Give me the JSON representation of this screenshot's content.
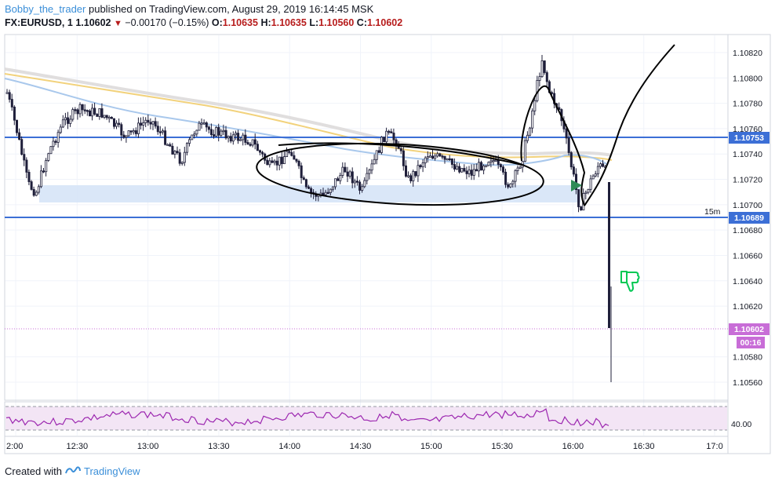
{
  "header": {
    "author": "Bobby_the_trader",
    "published": "published on TradingView.com, August 29, 2019 16:14:45 MSK",
    "symbol": "FX:EURUSD, 1",
    "last": "1.10602",
    "change": "−0.00170 (−0.15%)",
    "o_label": "O:",
    "o_value": "1.10635",
    "h_label": "H:",
    "h_value": "1.10635",
    "l_label": "L:",
    "l_value": "1.10560",
    "c_label": "C:",
    "c_value": "1.10602"
  },
  "price_axis": {
    "ticks": [
      "1.10820",
      "1.10800",
      "1.10780",
      "1.10760",
      "1.10740",
      "1.10720",
      "1.10700",
      "1.10680",
      "1.10660",
      "1.10640",
      "1.10620",
      "1.10580",
      "1.10560"
    ],
    "badges": {
      "upper_line": "1.10753",
      "lower_line": "1.10689",
      "current_price": "1.10602",
      "countdown": "00:16"
    },
    "line_label": "15m"
  },
  "rsi_axis": {
    "tick": "40.00"
  },
  "time_axis": {
    "ticks": [
      "2:00",
      "12:30",
      "13:00",
      "13:30",
      "14:00",
      "14:30",
      "15:00",
      "15:30",
      "16:00",
      "16:30",
      "17:0"
    ]
  },
  "footer": {
    "created_with": "Created with",
    "brand": "TradingView"
  },
  "colors": {
    "horizontal_line": "#2962ff",
    "zone": "#d6e4f7",
    "rsi_line": "#9c27b0",
    "rsi_band": "#f3e5f5",
    "current_price": "#c86dd7",
    "sell_thumb": "#00c853",
    "arrow": "#2e8b57"
  },
  "chart_data": {
    "type": "candlestick",
    "symbol": "FX:EURUSD",
    "timeframe": "1 minute",
    "price_range": [
      1.1055,
      1.1083
    ],
    "horizontal_lines": [
      1.10753,
      1.10689
    ],
    "zone": [
      1.10703,
      1.10717
    ],
    "current_price": 1.10602,
    "annotations": [
      "ellipse around range",
      "projected path curve",
      "thumbs-down sell icon",
      "green arrow at 16:00"
    ]
  }
}
